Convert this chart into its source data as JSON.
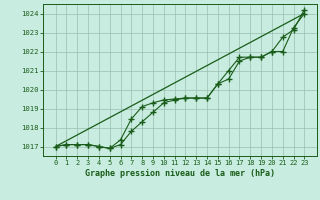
{
  "title": "Graphe pression niveau de la mer (hPa)",
  "bg_color": "#c8ede0",
  "grid_color": "#9abfb0",
  "line_color": "#1a5c1a",
  "ylim": [
    1016.5,
    1024.5
  ],
  "yticks": [
    1017,
    1018,
    1019,
    1020,
    1021,
    1022,
    1023,
    1024
  ],
  "x_labels": [
    "0",
    "1",
    "2",
    "3",
    "4",
    "5",
    "6",
    "7",
    "8",
    "9",
    "10",
    "11",
    "12",
    "13",
    "14",
    "15",
    "16",
    "17",
    "18",
    "19",
    "20",
    "21",
    "22",
    "23"
  ],
  "line_straight": [
    1017.0,
    1017.304,
    1017.609,
    1017.913,
    1018.217,
    1018.522,
    1018.826,
    1019.13,
    1019.435,
    1019.739,
    1020.043,
    1020.348,
    1020.652,
    1020.957,
    1021.261,
    1021.565,
    1021.87,
    1022.174,
    1022.478,
    1022.783,
    1023.087,
    1023.391,
    1023.696,
    1024.0
  ],
  "line_marked1": [
    1017.0,
    1017.1,
    1017.1,
    1017.1,
    1017.0,
    1016.9,
    1017.1,
    1017.8,
    1018.3,
    1018.8,
    1019.3,
    1019.45,
    1019.55,
    1019.55,
    1019.55,
    1020.3,
    1020.55,
    1021.5,
    1021.7,
    1021.7,
    1022.0,
    1022.0,
    1023.25,
    1024.0
  ],
  "line_marked2": [
    1017.0,
    1017.1,
    1017.1,
    1017.1,
    1017.0,
    1016.9,
    1017.35,
    1018.45,
    1019.1,
    1019.3,
    1019.45,
    1019.5,
    1019.55,
    1019.55,
    1019.55,
    1020.3,
    1021.0,
    1021.7,
    1021.7,
    1021.7,
    1022.0,
    1022.75,
    1023.15,
    1024.2
  ]
}
